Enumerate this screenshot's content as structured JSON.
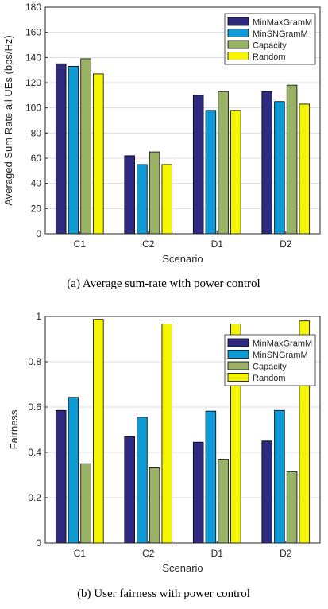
{
  "colors": {
    "MinMaxGramM": "#2e2a7f",
    "MinSNGramM": "#0e9ad5",
    "Capacity": "#99b265",
    "Random": "#f5f500",
    "grid": "#dcdcdc",
    "axis": "#262626"
  },
  "chart_data": [
    {
      "type": "bar",
      "categories": [
        "C1",
        "C2",
        "D1",
        "D2"
      ],
      "series": [
        {
          "name": "MinMaxGramM",
          "values": [
            135,
            62,
            110,
            113
          ]
        },
        {
          "name": "MinSNGramM",
          "values": [
            133,
            55,
            98,
            105
          ]
        },
        {
          "name": "Capacity",
          "values": [
            139,
            65,
            113,
            118
          ]
        },
        {
          "name": "Random",
          "values": [
            127,
            55,
            98,
            103
          ]
        }
      ],
      "xlabel": "Scenario",
      "ylabel": "Averaged Sum Rate all UEs (bps/Hz)",
      "ylim": [
        0,
        180
      ],
      "yticks": [
        "0",
        "20",
        "40",
        "60",
        "80",
        "100",
        "120",
        "140",
        "160",
        "180"
      ],
      "grid": true,
      "legend": "top-right",
      "caption": "(a) Average sum-rate with power control"
    },
    {
      "type": "bar",
      "categories": [
        "C1",
        "C2",
        "D1",
        "D2"
      ],
      "series": [
        {
          "name": "MinMaxGramM",
          "values": [
            0.585,
            0.47,
            0.445,
            0.45
          ]
        },
        {
          "name": "MinSNGramM",
          "values": [
            0.643,
            0.555,
            0.582,
            0.585
          ]
        },
        {
          "name": "Capacity",
          "values": [
            0.35,
            0.332,
            0.37,
            0.315
          ]
        },
        {
          "name": "Random",
          "values": [
            0.987,
            0.967,
            0.967,
            0.98
          ]
        }
      ],
      "xlabel": "Scenario",
      "ylabel": "Fairness",
      "ylim": [
        0,
        1
      ],
      "yticks": [
        "0",
        "0.2",
        "0.4",
        "0.6",
        "0.8",
        "1"
      ],
      "grid": true,
      "legend": "top-right",
      "caption": "(b) User fairness with power control"
    }
  ]
}
